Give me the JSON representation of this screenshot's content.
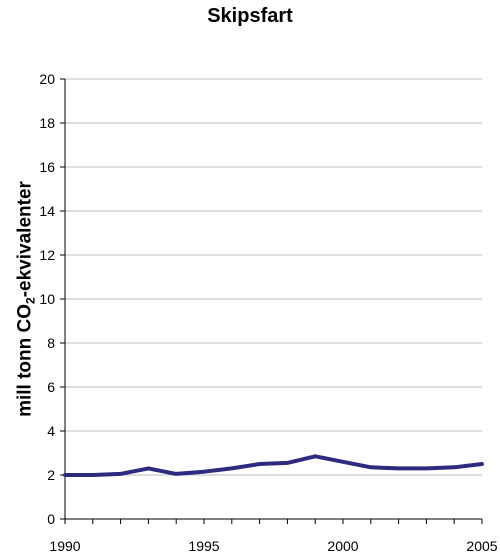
{
  "chart_data": {
    "type": "line",
    "title": "Skipsfart",
    "xlabel": "",
    "ylabel": {
      "before_sub": "mill tonn CO",
      "sub": "2",
      "after_sub": "-ekvivalenter"
    },
    "xlim": [
      1990,
      2005
    ],
    "ylim": [
      0,
      20
    ],
    "x_ticks": [
      "1990",
      "1995",
      "2000",
      "2005"
    ],
    "y_ticks": [
      "0",
      "2",
      "4",
      "6",
      "8",
      "10",
      "12",
      "14",
      "16",
      "18",
      "20"
    ],
    "grid": true,
    "legend": "none",
    "series": [
      {
        "color": "#2e2a7f",
        "x": [
          1990,
          1991,
          1992,
          1993,
          1994,
          1995,
          1996,
          1997,
          1998,
          1999,
          2000,
          2001,
          2002,
          2003,
          2004,
          2005
        ],
        "values": [
          2.0,
          2.0,
          2.05,
          2.3,
          2.05,
          2.15,
          2.3,
          2.5,
          2.55,
          2.85,
          2.6,
          2.35,
          2.3,
          2.3,
          2.35,
          2.5
        ]
      }
    ]
  }
}
